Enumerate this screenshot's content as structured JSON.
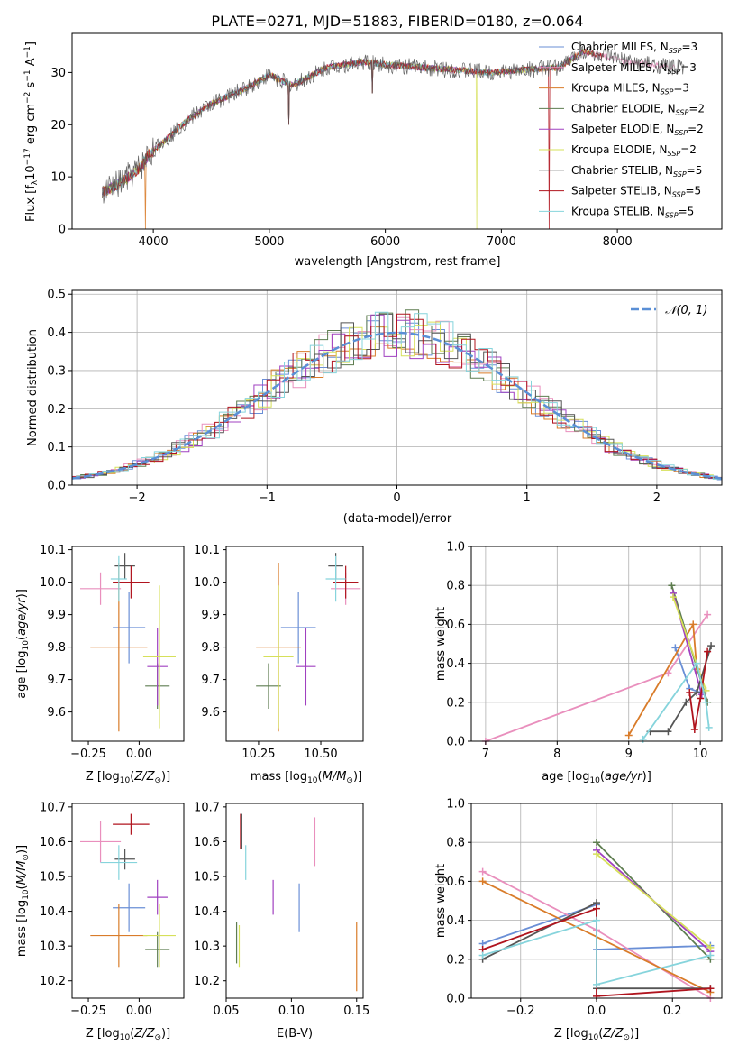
{
  "figure_title": "PLATE=0271, MJD=51883, FIBERID=0180, z=0.064",
  "model_labels": [
    {
      "name": "Chabrier MILES",
      "nssp": "3",
      "color": "#6a8fd6"
    },
    {
      "name": "Salpeter MILES",
      "nssp": "3",
      "color": "#e98fbd"
    },
    {
      "name": "Kroupa MILES",
      "nssp": "3",
      "color": "#d97c2a"
    },
    {
      "name": "Chabrier ELODIE",
      "nssp": "2",
      "color": "#5e7d50"
    },
    {
      "name": "Salpeter ELODIE",
      "nssp": "2",
      "color": "#a040c0"
    },
    {
      "name": "Kroupa ELODIE",
      "nssp": "2",
      "color": "#d6e05a"
    },
    {
      "name": "Chabrier STELIB",
      "nssp": "5",
      "color": "#555555"
    },
    {
      "name": "Salpeter STELIB",
      "nssp": "5",
      "color": "#b0141e"
    },
    {
      "name": "Kroupa STELIB",
      "nssp": "5",
      "color": "#86d4dc"
    }
  ],
  "chart_data": [
    {
      "id": "spectrum",
      "type": "line",
      "xlabel": "wavelength [Angstrom, rest frame]",
      "ylabel": "Flux [f_λ 10^-17 erg cm^-2 s^-1 A^-1]",
      "xlim": [
        3300,
        8900
      ],
      "ylim": [
        0,
        37.5
      ],
      "xticks": [
        4000,
        5000,
        6000,
        7000,
        8000
      ],
      "yticks": [
        0,
        10,
        20,
        30
      ],
      "legend_position": "right",
      "spectrum_envelope": {
        "x": [
          3560,
          3700,
          3900,
          3950,
          4100,
          4300,
          4500,
          4800,
          5000,
          5200,
          5500,
          5800,
          6000,
          6300,
          6600,
          6900,
          7200,
          7500,
          7700,
          7900,
          8100,
          8300,
          8500
        ],
        "y": [
          7,
          8.5,
          12,
          14,
          17,
          21,
          24,
          27,
          29.5,
          27.5,
          31,
          32,
          31.5,
          31,
          30.5,
          30,
          30.5,
          31,
          34,
          33,
          32,
          31.5,
          31
        ]
      },
      "spectrum_dips": [
        {
          "x": 3930,
          "y": 0
        },
        {
          "x": 5170,
          "y": 20
        },
        {
          "x": 5890,
          "y": 26
        },
        {
          "x": 6790,
          "y": 0
        },
        {
          "x": 7410,
          "y": 0
        }
      ],
      "grid": false
    },
    {
      "id": "residuals",
      "type": "histogram",
      "xlabel": "(data-model)/error",
      "ylabel": "Normed distribution",
      "xlim": [
        -2.5,
        2.5
      ],
      "ylim": [
        0,
        0.51
      ],
      "xticks": [
        -2,
        -1,
        0,
        1,
        2
      ],
      "yticks": [
        0.0,
        0.1,
        0.2,
        0.3,
        0.4,
        0.5
      ],
      "legend": [
        "𝒩(0, 1)"
      ],
      "legend_position": "top-right",
      "gaussian": {
        "mean": 0,
        "sigma": 1,
        "color": "#5a8fd6"
      },
      "grid": true
    },
    {
      "id": "age-vs-Z",
      "type": "errorbar",
      "xlabel": "Z [log10(Z/Z⊙)]",
      "ylabel": "age  [log10(age/yr)]",
      "xlim": [
        -0.33,
        0.22
      ],
      "ylim": [
        9.51,
        10.11
      ],
      "xticks": [
        -0.25,
        0.0
      ],
      "xtick_labels": [
        "−0.25",
        "0.00"
      ],
      "yticks": [
        9.6,
        9.7,
        9.8,
        9.9,
        10.0,
        10.1
      ],
      "points": [
        {
          "x": -0.05,
          "y": 9.86,
          "xerr": 0.08,
          "yerr": 0.11,
          "color": "#6a8fd6"
        },
        {
          "x": -0.19,
          "y": 9.98,
          "xerr": 0.1,
          "yerr": 0.05,
          "color": "#e98fbd"
        },
        {
          "x": -0.1,
          "y": 9.8,
          "xerr": 0.14,
          "yerr": 0.26,
          "color": "#d97c2a"
        },
        {
          "x": 0.09,
          "y": 9.68,
          "xerr": 0.06,
          "yerr": 0.07,
          "color": "#5e7d50"
        },
        {
          "x": 0.09,
          "y": 9.74,
          "xerr": 0.05,
          "yerr": 0.12,
          "color": "#a040c0"
        },
        {
          "x": 0.1,
          "y": 9.77,
          "xerr": 0.08,
          "yerr": 0.22,
          "color": "#d6e05a"
        },
        {
          "x": -0.07,
          "y": 10.05,
          "xerr": 0.05,
          "yerr": 0.04,
          "color": "#555555"
        },
        {
          "x": -0.04,
          "y": 10.0,
          "xerr": 0.09,
          "yerr": 0.05,
          "color": "#b0141e"
        },
        {
          "x": -0.1,
          "y": 10.01,
          "xerr": 0.04,
          "yerr": 0.07,
          "color": "#86d4dc"
        }
      ],
      "grid": false
    },
    {
      "id": "age-vs-mass",
      "type": "errorbar",
      "xlabel": "mass [log10(M/M⊙)]",
      "ylabel": "",
      "xlim": [
        10.12,
        10.67
      ],
      "ylim": [
        9.51,
        10.11
      ],
      "xticks": [
        10.25,
        10.5
      ],
      "xtick_labels": [
        "10.25",
        "10.50"
      ],
      "yticks": [
        9.6,
        9.7,
        9.8,
        9.9,
        10.0,
        10.1
      ],
      "points": [
        {
          "x": 10.41,
          "y": 9.86,
          "xerr": 0.07,
          "yerr": 0.11,
          "color": "#6a8fd6"
        },
        {
          "x": 10.6,
          "y": 9.98,
          "xerr": 0.06,
          "yerr": 0.05,
          "color": "#e98fbd"
        },
        {
          "x": 10.33,
          "y": 9.8,
          "xerr": 0.09,
          "yerr": 0.26,
          "color": "#d97c2a"
        },
        {
          "x": 10.29,
          "y": 9.68,
          "xerr": 0.05,
          "yerr": 0.07,
          "color": "#5e7d50"
        },
        {
          "x": 10.44,
          "y": 9.74,
          "xerr": 0.04,
          "yerr": 0.12,
          "color": "#a040c0"
        },
        {
          "x": 10.33,
          "y": 9.77,
          "xerr": 0.06,
          "yerr": 0.22,
          "color": "#d6e05a"
        },
        {
          "x": 10.56,
          "y": 10.05,
          "xerr": 0.03,
          "yerr": 0.04,
          "color": "#555555"
        },
        {
          "x": 10.6,
          "y": 10.0,
          "xerr": 0.05,
          "yerr": 0.05,
          "color": "#b0141e"
        },
        {
          "x": 10.56,
          "y": 10.01,
          "xerr": 0.04,
          "yerr": 0.07,
          "color": "#86d4dc"
        }
      ],
      "grid": false
    },
    {
      "id": "weight-vs-age",
      "type": "line",
      "xlabel": "age  [log10(age/yr)]",
      "ylabel": "mass weight",
      "xlim": [
        6.8,
        10.3
      ],
      "ylim": [
        0,
        1.0
      ],
      "xticks": [
        7,
        8,
        9,
        10
      ],
      "yticks": [
        0.0,
        0.2,
        0.4,
        0.6,
        0.8,
        1.0
      ],
      "series": [
        {
          "color": "#6a8fd6",
          "x": [
            9.65,
            9.85,
            10.0
          ],
          "y": [
            0.48,
            0.27,
            0.25
          ]
        },
        {
          "color": "#e98fbd",
          "x": [
            7.0,
            9.55,
            10.1
          ],
          "y": [
            0.0,
            0.35,
            0.65
          ]
        },
        {
          "color": "#d97c2a",
          "x": [
            9.0,
            9.9,
            9.95
          ],
          "y": [
            0.03,
            0.6,
            0.37
          ]
        },
        {
          "color": "#5e7d50",
          "x": [
            9.6,
            10.1
          ],
          "y": [
            0.8,
            0.2
          ]
        },
        {
          "color": "#a040c0",
          "x": [
            9.62,
            10.02
          ],
          "y": [
            0.76,
            0.24
          ]
        },
        {
          "color": "#d6e05a",
          "x": [
            9.62,
            10.08
          ],
          "y": [
            0.74,
            0.26
          ]
        },
        {
          "color": "#555555",
          "x": [
            9.3,
            9.55,
            9.8,
            9.95,
            10.15
          ],
          "y": [
            0.05,
            0.05,
            0.2,
            0.25,
            0.49
          ]
        },
        {
          "color": "#b0141e",
          "x": [
            9.85,
            9.92,
            10.0,
            10.1
          ],
          "y": [
            0.25,
            0.06,
            0.22,
            0.46
          ]
        },
        {
          "color": "#86d4dc",
          "x": [
            9.2,
            9.95,
            10.08,
            10.12
          ],
          "y": [
            0.01,
            0.4,
            0.2,
            0.07
          ]
        }
      ],
      "grid": true
    },
    {
      "id": "mass-vs-Z",
      "type": "errorbar",
      "xlabel": "Z [log10(Z/Z⊙)]",
      "ylabel": "mass [log10(M/M⊙)]",
      "xlim": [
        -0.33,
        0.22
      ],
      "ylim": [
        10.15,
        10.71
      ],
      "xticks": [
        -0.25,
        0.0
      ],
      "xtick_labels": [
        "−0.25",
        "0.00"
      ],
      "yticks": [
        10.2,
        10.3,
        10.4,
        10.5,
        10.6,
        10.7
      ],
      "points": [
        {
          "x": -0.05,
          "y": 10.41,
          "xerr": 0.08,
          "yerr": 0.07,
          "color": "#6a8fd6"
        },
        {
          "x": -0.19,
          "y": 10.6,
          "xerr": 0.1,
          "yerr": 0.06,
          "color": "#e98fbd"
        },
        {
          "x": -0.1,
          "y": 10.33,
          "xerr": 0.14,
          "yerr": 0.09,
          "color": "#d97c2a"
        },
        {
          "x": 0.09,
          "y": 10.29,
          "xerr": 0.06,
          "yerr": 0.05,
          "color": "#5e7d50"
        },
        {
          "x": 0.09,
          "y": 10.44,
          "xerr": 0.05,
          "yerr": 0.05,
          "color": "#a040c0"
        },
        {
          "x": 0.1,
          "y": 10.33,
          "xerr": 0.08,
          "yerr": 0.09,
          "color": "#d6e05a"
        },
        {
          "x": -0.07,
          "y": 10.55,
          "xerr": 0.05,
          "yerr": 0.03,
          "color": "#555555"
        },
        {
          "x": -0.04,
          "y": 10.65,
          "xerr": 0.09,
          "yerr": 0.03,
          "color": "#b0141e"
        },
        {
          "x": -0.1,
          "y": 10.54,
          "xerr": 0.09,
          "yerr": 0.05,
          "color": "#86d4dc"
        }
      ],
      "grid": false
    },
    {
      "id": "mass-vs-ebv",
      "type": "errorbar",
      "xlabel": "E(B-V)",
      "ylabel": "",
      "xlim": [
        0.05,
        0.155
      ],
      "ylim": [
        10.15,
        10.71
      ],
      "xticks": [
        0.05,
        0.1,
        0.15
      ],
      "xtick_labels": [
        "0.05",
        "0.10",
        "0.15"
      ],
      "yticks": [
        10.2,
        10.3,
        10.4,
        10.5,
        10.6,
        10.7
      ],
      "points": [
        {
          "x": 0.106,
          "y": 10.41,
          "xerr": 0,
          "yerr": 0.07,
          "color": "#6a8fd6"
        },
        {
          "x": 0.118,
          "y": 10.6,
          "xerr": 0,
          "yerr": 0.07,
          "color": "#e98fbd"
        },
        {
          "x": 0.15,
          "y": 10.27,
          "xerr": 0,
          "yerr": 0.1,
          "color": "#d97c2a"
        },
        {
          "x": 0.058,
          "y": 10.31,
          "xerr": 0,
          "yerr": 0.06,
          "color": "#5e7d50"
        },
        {
          "x": 0.086,
          "y": 10.44,
          "xerr": 0,
          "yerr": 0.05,
          "color": "#a040c0"
        },
        {
          "x": 0.06,
          "y": 10.3,
          "xerr": 0,
          "yerr": 0.06,
          "color": "#d6e05a"
        },
        {
          "x": 0.062,
          "y": 10.63,
          "xerr": 0,
          "yerr": 0.05,
          "color": "#555555"
        },
        {
          "x": 0.061,
          "y": 10.63,
          "xerr": 0,
          "yerr": 0.05,
          "color": "#b0141e"
        },
        {
          "x": 0.065,
          "y": 10.54,
          "xerr": 0,
          "yerr": 0.05,
          "color": "#86d4dc"
        }
      ],
      "grid": false
    },
    {
      "id": "weight-vs-Z",
      "type": "line",
      "xlabel": "Z [log10(Z/Z⊙)]",
      "ylabel": "mass weight",
      "xlim": [
        -0.33,
        0.33
      ],
      "ylim": [
        0,
        1.0
      ],
      "xticks": [
        -0.2,
        0.0,
        0.2
      ],
      "xtick_labels": [
        "−0.2",
        "0.0",
        "0.2"
      ],
      "yticks": [
        0.0,
        0.2,
        0.4,
        0.6,
        0.8,
        1.0
      ],
      "series": [
        {
          "color": "#6a8fd6",
          "x": [
            -0.3,
            0.0,
            0.0,
            0.3
          ],
          "y": [
            0.28,
            0.48,
            0.25,
            0.27
          ]
        },
        {
          "color": "#e98fbd",
          "x": [
            -0.3,
            0.0,
            0.3
          ],
          "y": [
            0.65,
            0.35,
            0.0
          ]
        },
        {
          "color": "#d97c2a",
          "x": [
            -0.3,
            0.3
          ],
          "y": [
            0.6,
            0.03
          ]
        },
        {
          "color": "#5e7d50",
          "x": [
            0.0,
            0.3
          ],
          "y": [
            0.8,
            0.2
          ]
        },
        {
          "color": "#a040c0",
          "x": [
            0.0,
            0.3
          ],
          "y": [
            0.76,
            0.24
          ]
        },
        {
          "color": "#d6e05a",
          "x": [
            0.0,
            0.3
          ],
          "y": [
            0.74,
            0.26
          ]
        },
        {
          "color": "#555555",
          "x": [
            -0.3,
            0.0,
            0.0,
            0.3
          ],
          "y": [
            0.2,
            0.49,
            0.05,
            0.05
          ]
        },
        {
          "color": "#b0141e",
          "x": [
            -0.3,
            0.0,
            0.0,
            0.3
          ],
          "y": [
            0.25,
            0.46,
            0.01,
            0.05
          ]
        },
        {
          "color": "#86d4dc",
          "x": [
            -0.3,
            0.0,
            0.0,
            0.3
          ],
          "y": [
            0.22,
            0.4,
            0.07,
            0.22
          ]
        }
      ],
      "grid": true
    }
  ]
}
